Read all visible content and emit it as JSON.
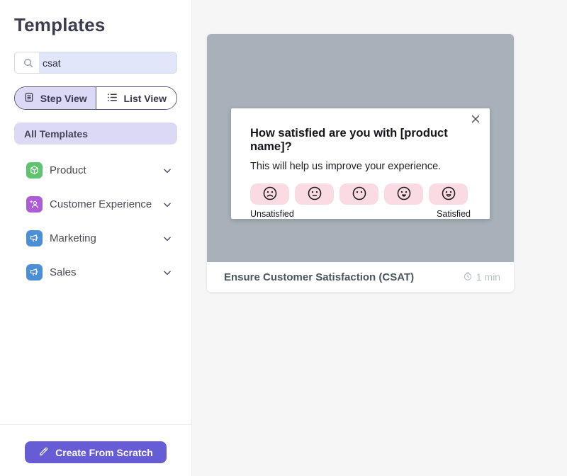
{
  "sidebar": {
    "title": "Templates",
    "search": {
      "value": "csat",
      "icon": "search-icon"
    },
    "view_toggle": {
      "step_label": "Step View",
      "list_label": "List View",
      "active": "step"
    },
    "all_templates_label": "All Templates",
    "categories": [
      {
        "label": "Product",
        "icon": "cube-icon",
        "color": "#5ec46d"
      },
      {
        "label": "Customer Experience",
        "icon": "user-star-icon",
        "color": "#ad5cd6"
      },
      {
        "label": "Marketing",
        "icon": "megaphone-icon",
        "color": "#4b8fd9"
      },
      {
        "label": "Sales",
        "icon": "megaphone-icon",
        "color": "#4b8fd9"
      }
    ],
    "create_button_label": "Create From Scratch"
  },
  "card": {
    "preview": {
      "question": "How satisfied are you with [product name]?",
      "subtitle": "This will help us improve your experience.",
      "close_icon": "close-icon",
      "scale": {
        "options": [
          "very-unsatisfied",
          "unsatisfied",
          "neutral",
          "satisfied",
          "very-satisfied"
        ],
        "min_label": "Unsatisfied",
        "max_label": "Satisfied"
      }
    },
    "title": "Ensure Customer Satisfaction (CSAT)",
    "duration": "1 min",
    "duration_icon": "clock-icon"
  },
  "colors": {
    "accent_purple": "#665dd6",
    "selected_pill": "#dcd9f4",
    "search_selection": "#e1e6fb",
    "preview_background": "#a8b1b9",
    "scale_pink": "#fbdbe3",
    "main_background": "#f6f6f7"
  }
}
